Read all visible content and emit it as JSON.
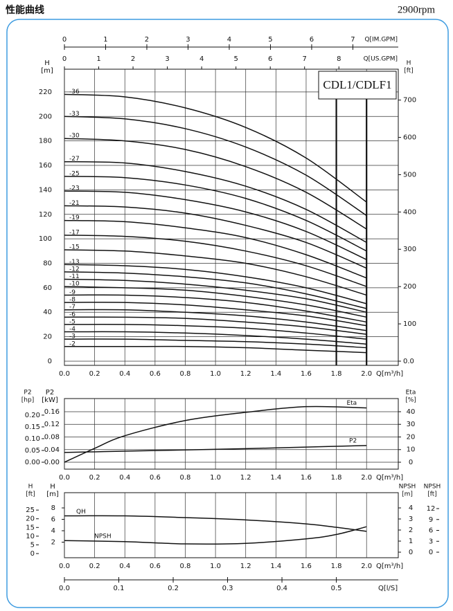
{
  "header": {
    "title": "性能曲线",
    "speed": "2900rpm"
  },
  "chart_data": [
    {
      "type": "line",
      "model": "CDL1/CDLF1",
      "color": "#111111",
      "grid": true,
      "x": [
        0,
        0.4,
        0.8,
        1.2,
        1.6,
        2.0
      ],
      "xlim": [
        0,
        2.21
      ],
      "xticks": [
        {
          "value": 0,
          "label": "0.0"
        },
        0.2,
        0.4,
        0.6,
        0.8,
        {
          "value": 1,
          "label": "1.0"
        },
        1.2,
        1.4,
        1.6,
        1.8,
        {
          "value": 2,
          "label": "2.0"
        }
      ],
      "xlabel": "Q[m³/h]",
      "ylim": [
        -3.4,
        238.6
      ],
      "yticks": [
        0,
        20,
        40,
        60,
        80,
        100,
        120,
        140,
        160,
        180,
        200,
        220
      ],
      "ylabel": "H",
      "yunit": "[m]",
      "y2lim": [
        -11.2,
        782.8
      ],
      "y2ticks": [
        {
          "value": 0,
          "label": "0.0"
        },
        100,
        200,
        300,
        400,
        500,
        600,
        700
      ],
      "y2label": "H",
      "y2unit": "[ft]",
      "extra_axes": [
        {
          "side": "top",
          "label": "Q[IM.GPM]",
          "lim": [
            0,
            8.102
          ],
          "ticks": [
            0,
            1,
            2,
            3,
            4,
            5,
            6,
            7
          ]
        },
        {
          "side": "top",
          "label": "Q[US.GPM]",
          "lim": [
            0,
            9.731
          ],
          "ticks": [
            0,
            1,
            2,
            3,
            4,
            5,
            6,
            7,
            8
          ]
        }
      ],
      "range_lines": [
        1.8,
        2.0
      ],
      "series": [
        {
          "name": "-36",
          "values": [
            218,
            216,
            207,
            191,
            166,
            130
          ]
        },
        {
          "name": "-33",
          "values": [
            200,
            198,
            190,
            175,
            152,
            119
          ]
        },
        {
          "name": "-30",
          "values": [
            182,
            180,
            173,
            159,
            138,
            108
          ]
        },
        {
          "name": "-27",
          "values": [
            163,
            162,
            155,
            143,
            124,
            97
          ]
        },
        {
          "name": "-25",
          "values": [
            151,
            150,
            144,
            133,
            115,
            90
          ]
        },
        {
          "name": "-23",
          "values": [
            139,
            138,
            132,
            122,
            106,
            83
          ]
        },
        {
          "name": "-21",
          "values": [
            127,
            126,
            121,
            111,
            97,
            76
          ]
        },
        {
          "name": "-19",
          "values": [
            115,
            114,
            109,
            101,
            87,
            68
          ]
        },
        {
          "name": "-17",
          "values": [
            103,
            102,
            98,
            90,
            78,
            61
          ]
        },
        {
          "name": "-15",
          "values": [
            91,
            90,
            86,
            80,
            69,
            54
          ]
        },
        {
          "name": "-13",
          "values": [
            79,
            78,
            75,
            69,
            60,
            47
          ]
        },
        {
          "name": "-12",
          "values": [
            73,
            72,
            69,
            64,
            55,
            43
          ]
        },
        {
          "name": "-11",
          "values": [
            67,
            66,
            63,
            58,
            51,
            40
          ]
        },
        {
          "name": "-10",
          "values": [
            61,
            60,
            58,
            53,
            46,
            36
          ]
        },
        {
          "name": "-9",
          "values": [
            54,
            54,
            52,
            48,
            41,
            32
          ]
        },
        {
          "name": "-8",
          "values": [
            48,
            48,
            46,
            42,
            37,
            29
          ]
        },
        {
          "name": "-7",
          "values": [
            42,
            42,
            40,
            37,
            32,
            25
          ]
        },
        {
          "name": "-6",
          "values": [
            36,
            36,
            35,
            32,
            28,
            22
          ]
        },
        {
          "name": "-5",
          "values": [
            30,
            30,
            29,
            27,
            23,
            18
          ]
        },
        {
          "name": "-4",
          "values": [
            24,
            24,
            23,
            21,
            18,
            14
          ]
        },
        {
          "name": "-3",
          "values": [
            18,
            18,
            17,
            16,
            14,
            11
          ]
        },
        {
          "name": "-2",
          "values": [
            12,
            12,
            12,
            11,
            9,
            7
          ]
        }
      ]
    },
    {
      "type": "line",
      "color": "#111111",
      "grid": true,
      "x": [
        0,
        0.2,
        0.4,
        0.8,
        1.2,
        1.6,
        2.0
      ],
      "xlim": [
        0,
        2.21
      ],
      "xticks": [
        {
          "value": 0,
          "label": "0.0"
        },
        0.2,
        0.4,
        0.6,
        0.8,
        {
          "value": 1,
          "label": "1.0"
        },
        1.2,
        1.4,
        1.6,
        1.8,
        {
          "value": 2,
          "label": "2.0"
        }
      ],
      "xlabel": "Q[m³/h]",
      "ylim": [
        -0.0219,
        0.2016
      ],
      "yticks": [
        {
          "value": 0,
          "label": "0.00"
        },
        0.04,
        0.08,
        0.12,
        0.16
      ],
      "ylabel": "P2",
      "yunit": "[kW]",
      "y2lim": [
        -5.48,
        50.4
      ],
      "y2ticks": [
        0,
        10,
        20,
        30,
        40
      ],
      "y2label": "Eta",
      "y2unit": "[%]",
      "extra_axes": [
        {
          "side": "left",
          "label": "P2",
          "unit": "[hp]",
          "lim": [
            -0.0294,
            0.2703
          ],
          "ticks": [
            {
              "value": 0,
              "label": "0.00"
            },
            0.05,
            {
              "value": 0.1,
              "label": "0.10"
            },
            0.15,
            {
              "value": 0.2,
              "label": "0.20"
            }
          ]
        }
      ],
      "series": [
        {
          "name": "Eta",
          "axis": "y2",
          "values": [
            0,
            11,
            21,
            33,
            39.5,
            44,
            43
          ]
        },
        {
          "name": "P2",
          "values": [
            0.031,
            0.033,
            0.035,
            0.039,
            0.043,
            0.048,
            0.053
          ]
        }
      ]
    },
    {
      "type": "line",
      "color": "#111111",
      "grid": "x",
      "x": [
        0,
        0.4,
        0.8,
        1.2,
        1.6,
        1.8,
        2.0
      ],
      "xlim": [
        0,
        2.21
      ],
      "xticks": [
        {
          "value": 0,
          "label": "0.0"
        },
        0.2,
        0.4,
        0.6,
        0.8,
        {
          "value": 1,
          "label": "1.0"
        },
        1.2,
        1.4,
        1.6,
        1.8,
        {
          "value": 2,
          "label": "2.0"
        }
      ],
      "xlabel": "Q[m³/h]",
      "ylim": [
        -0.73,
        10.67
      ],
      "yticks": [
        2,
        4,
        6,
        8
      ],
      "ylabel": "H",
      "yunit": "[m]",
      "y2lim": [
        -0.5,
        5.375
      ],
      "y2ticks": [
        0,
        1,
        2,
        3,
        4
      ],
      "y2label": "NPSH",
      "y2unit": "[m]",
      "extra_axes": [
        {
          "side": "left",
          "label": "H",
          "unit": "[ft]",
          "lim": [
            -2.39,
            35.0
          ],
          "ticks": [
            0,
            5,
            10,
            15,
            20,
            25
          ]
        },
        {
          "side": "right",
          "label": "NPSH",
          "unit": "[ft]",
          "lim": [
            -1.52,
            16.38
          ],
          "ticks": [
            0,
            3,
            6,
            9,
            12
          ]
        },
        {
          "side": "bottom",
          "label": "Q[l/S]",
          "lim": [
            0,
            0.6139
          ],
          "ticks": [
            {
              "value": 0,
              "label": "0.0"
            },
            0.1,
            0.2,
            0.3,
            0.4,
            0.5
          ]
        }
      ],
      "series": [
        {
          "name": "QH",
          "values": [
            6.6,
            6.6,
            6.3,
            5.9,
            5.2,
            4.6,
            3.9
          ]
        },
        {
          "name": "NPSH",
          "axis": "y2",
          "values": [
            1.05,
            0.95,
            0.75,
            0.8,
            1.2,
            1.6,
            2.3
          ]
        }
      ]
    }
  ]
}
